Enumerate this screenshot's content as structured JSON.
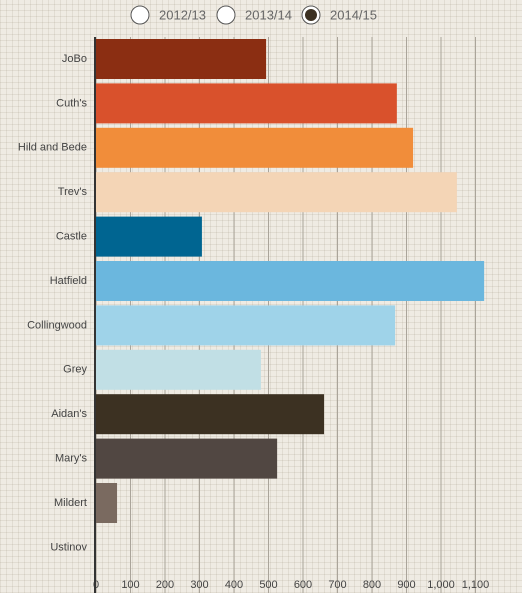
{
  "chart_data": {
    "type": "bar",
    "orientation": "horizontal",
    "legend_options": [
      "2012/13",
      "2013/14",
      "2014/15"
    ],
    "selected_option": 2,
    "categories": [
      "JoBo",
      "Cuth's",
      "Hild and Bede",
      "Trev's",
      "Castle",
      "Hatfield",
      "Collingwood",
      "Grey",
      "Aidan's",
      "Mary's",
      "Mildert",
      "Ustinov"
    ],
    "values": [
      493,
      872,
      919,
      1046,
      307,
      1125,
      867,
      478,
      661,
      525,
      61,
      0
    ],
    "colors": [
      "#8b2e12",
      "#d9512c",
      "#f18d3a",
      "#f4d5b6",
      "#006591",
      "#6bb7de",
      "#9fd3e9",
      "#c1dfe5",
      "#3c3122",
      "#514742",
      "#7a6a60",
      "#999999"
    ],
    "xlim": [
      0,
      1200
    ],
    "xticks": [
      0,
      100,
      200,
      300,
      400,
      500,
      600,
      700,
      800,
      900,
      {
        "value": 1000,
        "label": "1,000"
      },
      {
        "value": 1100,
        "label": "1,100"
      }
    ],
    "grid": true
  }
}
